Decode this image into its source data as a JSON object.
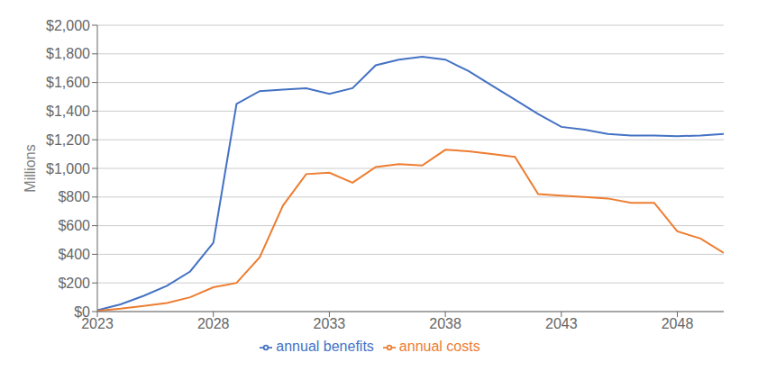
{
  "chart_data": {
    "type": "line",
    "x": [
      2023,
      2024,
      2025,
      2026,
      2027,
      2028,
      2029,
      2030,
      2031,
      2032,
      2033,
      2034,
      2035,
      2036,
      2037,
      2038,
      2039,
      2040,
      2041,
      2042,
      2043,
      2044,
      2045,
      2046,
      2047,
      2048,
      2049,
      2050
    ],
    "series": [
      {
        "name": "annual benefits",
        "color": "#4472C4",
        "values": [
          10,
          50,
          110,
          180,
          280,
          480,
          1450,
          1540,
          1550,
          1560,
          1520,
          1560,
          1720,
          1760,
          1780,
          1760,
          1680,
          1580,
          1480,
          1380,
          1290,
          1270,
          1240,
          1230,
          1230,
          1225,
          1230,
          1240
        ]
      },
      {
        "name": "annual costs",
        "color": "#ED7D31",
        "values": [
          5,
          20,
          40,
          60,
          100,
          170,
          200,
          380,
          740,
          960,
          970,
          900,
          1010,
          1030,
          1020,
          1130,
          1120,
          1100,
          1080,
          820,
          810,
          800,
          790,
          760,
          760,
          560,
          510,
          410
        ]
      }
    ],
    "ylabel": "Millions",
    "xlim": [
      2023,
      2050
    ],
    "xticks": [
      2023,
      2028,
      2033,
      2038,
      2043,
      2048
    ],
    "ylim": [
      0,
      2000
    ],
    "yticks": [
      {
        "value": 0,
        "label": "$0"
      },
      {
        "value": 200,
        "label": "$200"
      },
      {
        "value": 400,
        "label": "$400"
      },
      {
        "value": 600,
        "label": "$600"
      },
      {
        "value": 800,
        "label": "$800"
      },
      {
        "value": 1000,
        "label": "$1,000"
      },
      {
        "value": 1200,
        "label": "$1,200"
      },
      {
        "value": 1400,
        "label": "$1,400"
      },
      {
        "value": 1600,
        "label": "$1,600"
      },
      {
        "value": 1800,
        "label": "$1,800"
      },
      {
        "value": 2000,
        "label": "$2,000"
      }
    ],
    "grid": true,
    "legend": "bottom"
  }
}
